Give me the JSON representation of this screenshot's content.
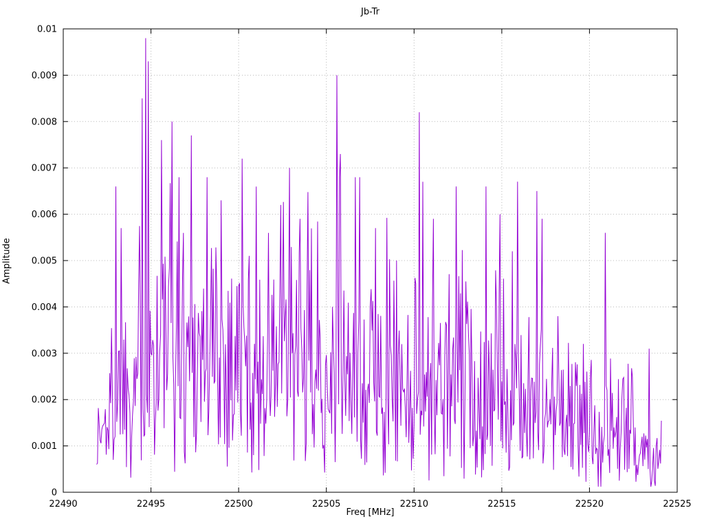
{
  "chart_data": {
    "type": "line",
    "title": "Jb-Tr",
    "xlabel": "Freq [MHz]",
    "ylabel": "Amplitude",
    "xlim": [
      22490,
      22525
    ],
    "ylim": [
      0,
      0.01
    ],
    "grid": true,
    "legend": "none",
    "line_color": "#9400d3",
    "x_ticks": {
      "values": [
        22490,
        22495,
        22500,
        22505,
        22510,
        22515,
        22520,
        22525
      ],
      "labels": [
        "22490",
        "22495",
        "22500",
        "22505",
        "22510",
        "22515",
        "22520",
        "22525"
      ]
    },
    "y_ticks": {
      "values": [
        0,
        0.001,
        0.002,
        0.003,
        0.004,
        0.005,
        0.006,
        0.007,
        0.008,
        0.009,
        0.01
      ],
      "labels": [
        "0",
        "0.001",
        "0.002",
        "0.003",
        "0.004",
        "0.005",
        "0.006",
        "0.007",
        "0.008",
        "0.009",
        "0.01"
      ]
    },
    "data_x_range": [
      22491.9,
      22524.1
    ],
    "description": "Dense noisy amplitude spectrum; noise floor around 0.001-0.004 with many narrow spikes; amplitude envelope decreases toward higher frequency",
    "noise_envelope": [
      [
        22491.9,
        0.0014
      ],
      [
        22492.5,
        0.0019
      ],
      [
        22493.0,
        0.0027
      ],
      [
        22493.5,
        0.003
      ],
      [
        22494.0,
        0.0033
      ],
      [
        22495.0,
        0.0036
      ],
      [
        22496.0,
        0.0038
      ],
      [
        22497.0,
        0.0037
      ],
      [
        22498.0,
        0.0038
      ],
      [
        22499.0,
        0.0036
      ],
      [
        22500.0,
        0.0035
      ],
      [
        22501.0,
        0.0033
      ],
      [
        22502.0,
        0.0034
      ],
      [
        22503.0,
        0.0033
      ],
      [
        22504.0,
        0.0031
      ],
      [
        22505.0,
        0.0032
      ],
      [
        22506.0,
        0.0033
      ],
      [
        22507.0,
        0.0031
      ],
      [
        22508.0,
        0.003
      ],
      [
        22509.0,
        0.0029
      ],
      [
        22510.0,
        0.0029
      ],
      [
        22511.0,
        0.0028
      ],
      [
        22512.0,
        0.0028
      ],
      [
        22513.0,
        0.0027
      ],
      [
        22514.0,
        0.0027
      ],
      [
        22515.0,
        0.0026
      ],
      [
        22516.0,
        0.0025
      ],
      [
        22517.0,
        0.0024
      ],
      [
        22518.0,
        0.0021
      ],
      [
        22519.0,
        0.0018
      ],
      [
        22520.0,
        0.0018
      ],
      [
        22521.0,
        0.0017
      ],
      [
        22522.0,
        0.0016
      ],
      [
        22523.0,
        0.0013
      ],
      [
        22523.8,
        0.0009
      ],
      [
        22524.1,
        0.001
      ]
    ],
    "peaks": [
      [
        22493.0,
        0.0066
      ],
      [
        22493.3,
        0.0057
      ],
      [
        22494.5,
        0.0085
      ],
      [
        22494.7,
        0.0098
      ],
      [
        22494.85,
        0.0093
      ],
      [
        22495.6,
        0.0076
      ],
      [
        22496.2,
        0.008
      ],
      [
        22496.6,
        0.0068
      ],
      [
        22497.3,
        0.0077
      ],
      [
        22498.2,
        0.0068
      ],
      [
        22499.0,
        0.0063
      ],
      [
        22500.2,
        0.0072
      ],
      [
        22501.0,
        0.0064
      ],
      [
        22502.4,
        0.0062
      ],
      [
        22502.9,
        0.007
      ],
      [
        22503.5,
        0.0059
      ],
      [
        22505.6,
        0.009
      ],
      [
        22505.8,
        0.0073
      ],
      [
        22506.9,
        0.0068
      ],
      [
        22507.8,
        0.0057
      ],
      [
        22509.0,
        0.005
      ],
      [
        22510.3,
        0.0082
      ],
      [
        22510.5,
        0.0067
      ],
      [
        22511.1,
        0.0059
      ],
      [
        22512.4,
        0.0066
      ],
      [
        22514.1,
        0.0066
      ],
      [
        22514.9,
        0.006
      ],
      [
        22515.6,
        0.0052
      ],
      [
        22517.0,
        0.0065
      ],
      [
        22517.3,
        0.0059
      ],
      [
        22518.2,
        0.0038
      ],
      [
        22520.9,
        0.0056
      ],
      [
        22523.4,
        0.0031
      ]
    ],
    "render": {
      "seed": 1337,
      "sample_step": 0.05
    }
  }
}
